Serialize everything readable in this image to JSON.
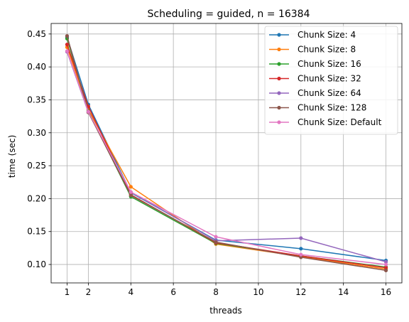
{
  "chart_data": {
    "type": "line",
    "title": "Scheduling = guided, n = 16384",
    "xlabel": "threads",
    "ylabel": "time (sec)",
    "x": [
      1,
      2,
      4,
      8,
      12,
      16
    ],
    "xticks": [
      1,
      2,
      4,
      6,
      8,
      10,
      12,
      14,
      16
    ],
    "yticks": [
      0.1,
      0.15,
      0.2,
      0.25,
      0.3,
      0.35,
      0.4,
      0.45
    ],
    "ytick_labels": [
      "0.10",
      "0.15",
      "0.20",
      "0.25",
      "0.30",
      "0.35",
      "0.40",
      "0.45"
    ],
    "xlim": [
      0.25,
      16.75
    ],
    "ylim": [
      0.072,
      0.466
    ],
    "grid": true,
    "legend_position": "top-right",
    "series": [
      {
        "name": "Chunk Size: 4",
        "color": "#1f77b4",
        "values": [
          0.445,
          0.343,
          0.209,
          0.137,
          0.124,
          0.106
        ]
      },
      {
        "name": "Chunk Size: 8",
        "color": "#ff7f0e",
        "values": [
          0.43,
          0.335,
          0.218,
          0.131,
          0.112,
          0.093
        ]
      },
      {
        "name": "Chunk Size: 16",
        "color": "#2ca02c",
        "values": [
          0.443,
          0.333,
          0.203,
          0.132,
          0.113,
          0.096
        ]
      },
      {
        "name": "Chunk Size: 32",
        "color": "#d62728",
        "values": [
          0.434,
          0.34,
          0.206,
          0.133,
          0.113,
          0.095
        ]
      },
      {
        "name": "Chunk Size: 64",
        "color": "#9467bd",
        "values": [
          0.423,
          0.331,
          0.21,
          0.136,
          0.14,
          0.104
        ]
      },
      {
        "name": "Chunk Size: 128",
        "color": "#8c564b",
        "values": [
          0.447,
          0.331,
          0.205,
          0.134,
          0.111,
          0.091
        ]
      },
      {
        "name": "Chunk Size: Default",
        "color": "#e377c2",
        "values": [
          0.424,
          0.332,
          0.21,
          0.142,
          0.115,
          0.1
        ]
      }
    ]
  }
}
